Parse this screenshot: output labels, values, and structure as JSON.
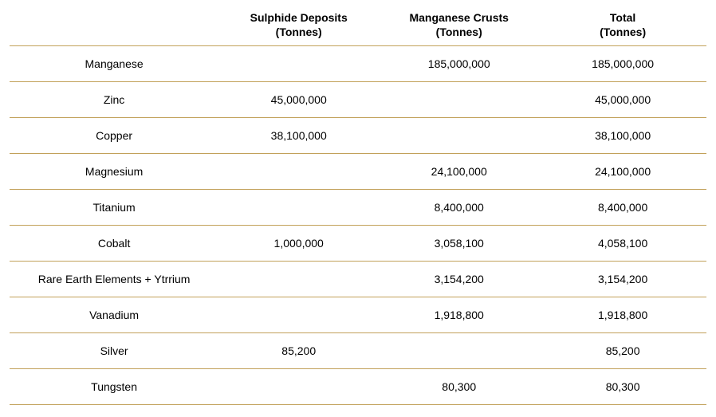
{
  "table": {
    "border_color": "#c2a15a",
    "text_color": "#000000",
    "font_family": "Arial, Helvetica, sans-serif",
    "header_fontsize": 14,
    "body_fontsize": 14,
    "columns": [
      {
        "line1": "",
        "line2": ""
      },
      {
        "line1": "Sulphide Deposits",
        "line2": "(Tonnes)"
      },
      {
        "line1": "Manganese Crusts",
        "line2": "(Tonnes)"
      },
      {
        "line1": "Total",
        "line2": "(Tonnes)"
      }
    ],
    "rows": [
      {
        "label": "Manganese",
        "sulphide": "",
        "crusts": "185,000,000",
        "total": "185,000,000"
      },
      {
        "label": "Zinc",
        "sulphide": "45,000,000",
        "crusts": "",
        "total": "45,000,000"
      },
      {
        "label": "Copper",
        "sulphide": "38,100,000",
        "crusts": "",
        "total": "38,100,000"
      },
      {
        "label": "Magnesium",
        "sulphide": "",
        "crusts": "24,100,000",
        "total": "24,100,000"
      },
      {
        "label": "Titanium",
        "sulphide": "",
        "crusts": "8,400,000",
        "total": "8,400,000"
      },
      {
        "label": "Cobalt",
        "sulphide": "1,000,000",
        "crusts": "3,058,100",
        "total": "4,058,100"
      },
      {
        "label": "Rare Earth Elements + Ytrrium",
        "sulphide": "",
        "crusts": "3,154,200",
        "total": "3,154,200"
      },
      {
        "label": "Vanadium",
        "sulphide": "",
        "crusts": "1,918,800",
        "total": "1,918,800"
      },
      {
        "label": "Silver",
        "sulphide": "85,200",
        "crusts": "",
        "total": "85,200"
      },
      {
        "label": "Tungsten",
        "sulphide": "",
        "crusts": "80,300",
        "total": "80,300"
      }
    ]
  }
}
